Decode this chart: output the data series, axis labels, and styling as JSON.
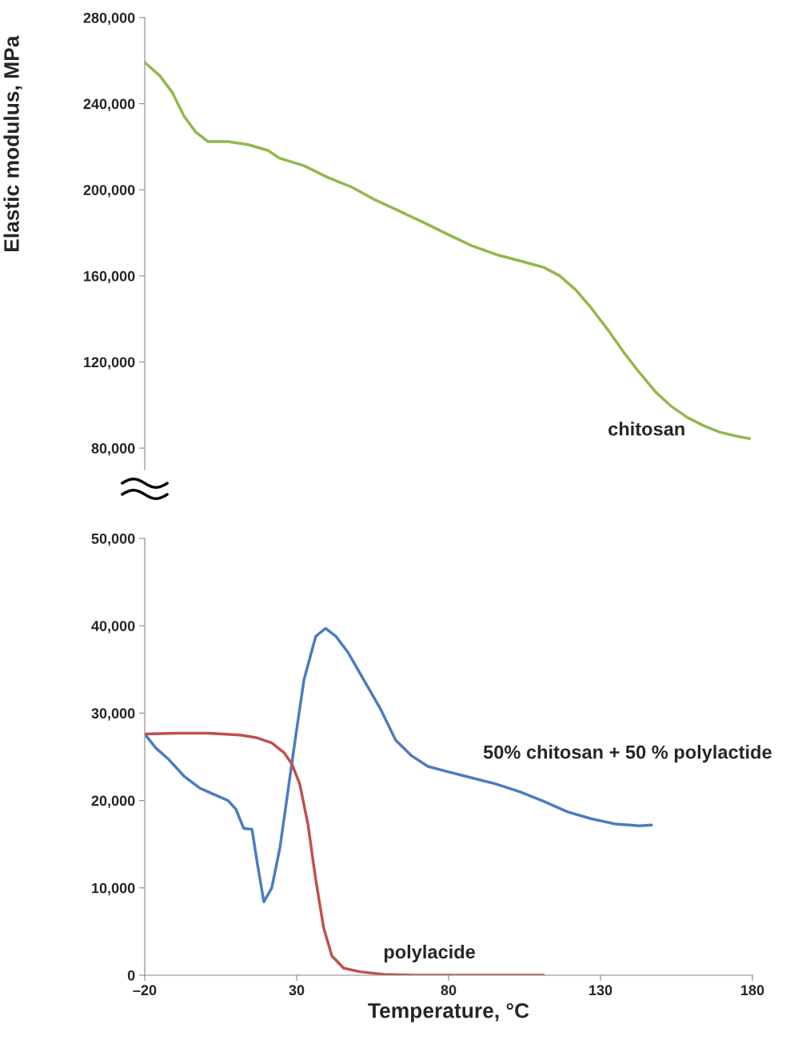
{
  "chart_data": [
    {
      "type": "line",
      "ylabel": "Elastic modulus, MPa",
      "xlim": [
        -20,
        180
      ],
      "ylim": [
        70000,
        280000
      ],
      "tick_labels": "y",
      "yticks": [
        {
          "value": 80000,
          "label": "80,000"
        },
        {
          "value": 120000,
          "label": "120,000"
        },
        {
          "value": 160000,
          "label": "160,000"
        },
        {
          "value": 200000,
          "label": "200,000"
        },
        {
          "value": 240000,
          "label": "240,000"
        },
        {
          "value": 280000,
          "label": "280,000"
        }
      ],
      "series": [
        {
          "name": "chitosan",
          "color": "#92b84a",
          "x": [
            -20,
            -15,
            -11,
            -7.1,
            -3.2,
            0.8,
            7.4,
            14,
            20.5,
            24.5,
            32.4,
            40.3,
            48.2,
            56,
            64,
            71.8,
            79.7,
            87.6,
            95.5,
            103.4,
            111.3,
            116.6,
            121.8,
            127,
            132.4,
            137.6,
            142.9,
            148.2,
            153.4,
            158.7,
            164,
            169.2,
            174.5,
            179
          ],
          "values": [
            259200,
            252900,
            245400,
            234300,
            226800,
            222400,
            222400,
            221000,
            218300,
            214600,
            211200,
            205700,
            201200,
            195200,
            190000,
            184800,
            179300,
            174000,
            170000,
            167000,
            164000,
            160000,
            153600,
            145000,
            135000,
            124600,
            114900,
            106000,
            99300,
            94100,
            90400,
            87400,
            85600,
            84400
          ]
        }
      ]
    },
    {
      "type": "line",
      "xlabel": "Temperature, °C",
      "xlim": [
        -20,
        180
      ],
      "ylim": [
        0,
        50000
      ],
      "xticks": [
        {
          "value": -20,
          "label": "–20"
        },
        30,
        80,
        130,
        180
      ],
      "yticks": [
        0,
        {
          "value": 10000,
          "label": "10,000"
        },
        {
          "value": 20000,
          "label": "20,000"
        },
        {
          "value": 30000,
          "label": "30,000"
        },
        {
          "value": 40000,
          "label": "40,000"
        },
        {
          "value": 50000,
          "label": "50,000"
        }
      ],
      "series": [
        {
          "name": "50% chitosan + 50 % polylactide",
          "color": "#4a7cc0",
          "x": [
            -20,
            -16.3,
            -12.4,
            -7.1,
            -1.8,
            2.1,
            7.4,
            10,
            12.6,
            15.3,
            17.1,
            19.2,
            21.8,
            24.5,
            27.1,
            29.7,
            32.4,
            36.3,
            39.5,
            42.9,
            46.8,
            52.1,
            57.4,
            62.6,
            67.9,
            73.2,
            79.7,
            87.6,
            95.5,
            103.4,
            111.3,
            119.2,
            127,
            135,
            142.9,
            146.8
          ],
          "values": [
            27600,
            26000,
            24800,
            22800,
            21400,
            20800,
            20000,
            19000,
            16800,
            16700,
            12700,
            8400,
            10000,
            14600,
            21000,
            27400,
            33800,
            38800,
            39700,
            38800,
            37000,
            33800,
            30600,
            26900,
            25100,
            23900,
            23300,
            22600,
            21900,
            21000,
            19900,
            18700,
            17900,
            17300,
            17100,
            17200
          ]
        },
        {
          "name": "polylacide",
          "color": "#c0504d",
          "x": [
            -20,
            -9.7,
            0.8,
            11.3,
            16.6,
            21.8,
            25.8,
            28.4,
            31,
            33.7,
            36.3,
            38.9,
            41.6,
            45.5,
            50.8,
            58.7,
            69.2,
            90,
            111.3
          ],
          "values": [
            27600,
            27700,
            27700,
            27500,
            27200,
            26600,
            25500,
            24200,
            21900,
            17300,
            10900,
            5400,
            2200,
            800,
            400,
            100,
            0,
            0,
            0
          ]
        }
      ]
    }
  ]
}
